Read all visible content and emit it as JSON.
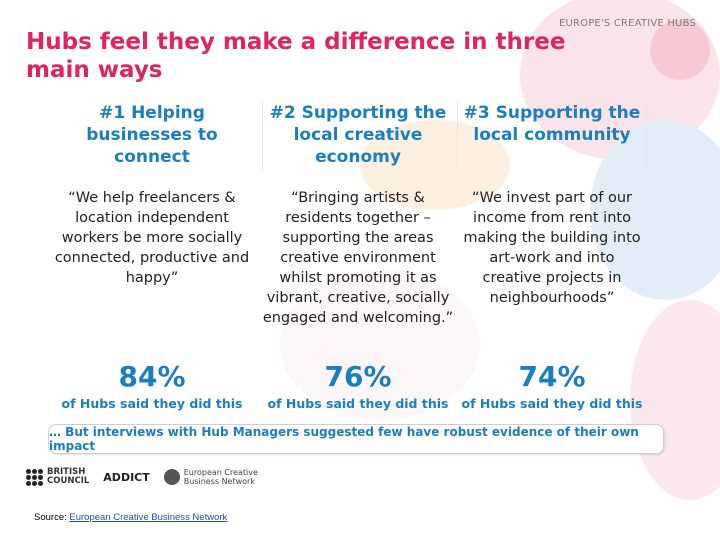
{
  "header": {
    "brand": "EUROPE'S CREATIVE HUBS",
    "title": "Hubs feel they make a difference in three main ways"
  },
  "columns": [
    {
      "heading": "#1 Helping businesses to connect",
      "quote": "“We help freelancers & location independent workers be more socially connected, productive and happy”",
      "percent": "84%",
      "percent_label": "of Hubs said they did this"
    },
    {
      "heading": "#2 Supporting the local creative economy",
      "quote": "“Bringing artists & residents together – supporting the areas creative environment whilst promoting it as vibrant, creative, socially engaged and welcoming.”",
      "percent": "76%",
      "percent_label": "of Hubs said they did this"
    },
    {
      "heading": "#3 Supporting the local community",
      "quote": "“We invest part of our income from rent into making the building into art-work and into creative projects in neighbourhoods”",
      "percent": "74%",
      "percent_label": "of Hubs said they did this"
    }
  ],
  "footnote": "… But interviews with Hub Managers suggested few have robust evidence of their own impact",
  "logos": {
    "british_council_line1": "BRITISH",
    "british_council_line2": "COUNCIL",
    "addict": "ADDICT",
    "ecbn_line1": "European Creative",
    "ecbn_line2": "Business Network"
  },
  "source": {
    "prefix": "Source: ",
    "link_text": "European Creative Business Network"
  },
  "colors": {
    "title": "#e0245e",
    "accent_blue": "#1a7fc1"
  }
}
